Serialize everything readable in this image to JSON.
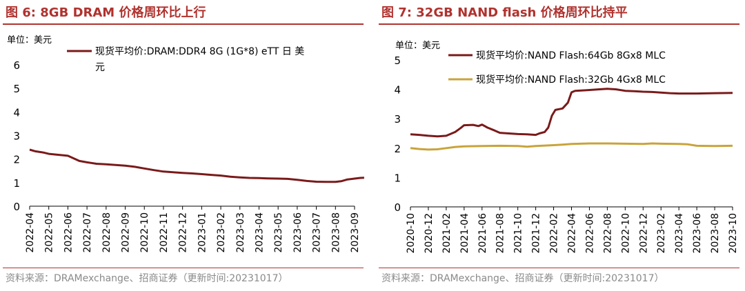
{
  "chart_data": [
    {
      "type": "line",
      "figure_label": "图 6:",
      "title": "8GB DRAM 价格周环比上行",
      "unit": "单位：美元",
      "legend": [
        "现货平均价:DRAM:DDR4 8G (1G*8) eTT 日 美",
        "元"
      ],
      "source": "资料来源：DRAMexchange、招商证券（更新时间:20231017）",
      "ylim": [
        0,
        6
      ],
      "yticks": [
        0,
        1,
        2,
        3,
        4,
        5,
        6
      ],
      "x_labels": [
        "2022-04",
        "2022-05",
        "2022-06",
        "2022-07",
        "2022-08",
        "2022-09",
        "2022-10",
        "2022-11",
        "2022-12",
        "2023-01",
        "2023-02",
        "2023-03",
        "2023-04",
        "2023-05",
        "2023-06",
        "2023-07",
        "2023-08",
        "2023-09"
      ],
      "color": "#7a1a1a",
      "series": [
        {
          "name": "现货平均价:DRAM:DDR4 8G (1G*8) eTT 日 美元",
          "values": [
            [
              0,
              2.4
            ],
            [
              0.3,
              2.33
            ],
            [
              0.7,
              2.28
            ],
            [
              1,
              2.22
            ],
            [
              1.5,
              2.18
            ],
            [
              2,
              2.14
            ],
            [
              2.3,
              2.03
            ],
            [
              2.6,
              1.92
            ],
            [
              3,
              1.86
            ],
            [
              3.5,
              1.8
            ],
            [
              4,
              1.78
            ],
            [
              4.5,
              1.75
            ],
            [
              5,
              1.72
            ],
            [
              5.5,
              1.67
            ],
            [
              6,
              1.6
            ],
            [
              6.5,
              1.53
            ],
            [
              7,
              1.47
            ],
            [
              7.5,
              1.44
            ],
            [
              8,
              1.41
            ],
            [
              8.5,
              1.39
            ],
            [
              9,
              1.36
            ],
            [
              9.5,
              1.33
            ],
            [
              10,
              1.3
            ],
            [
              10.5,
              1.25
            ],
            [
              11,
              1.22
            ],
            [
              11.5,
              1.2
            ],
            [
              12,
              1.19
            ],
            [
              12.5,
              1.18
            ],
            [
              13,
              1.17
            ],
            [
              13.5,
              1.16
            ],
            [
              14,
              1.12
            ],
            [
              14.5,
              1.07
            ],
            [
              15,
              1.04
            ],
            [
              15.5,
              1.03
            ],
            [
              16,
              1.03
            ],
            [
              16.3,
              1.06
            ],
            [
              16.6,
              1.13
            ],
            [
              17,
              1.17
            ],
            [
              17.3,
              1.2
            ],
            [
              17.5,
              1.21
            ]
          ]
        }
      ]
    },
    {
      "type": "line",
      "figure_label": "图 7:",
      "title": "32GB NAND flash 价格周环比持平",
      "unit": "单位：美元",
      "source": "资料来源：DRAMexchange、招商证券（更新时间:20231017）",
      "ylim": [
        0,
        5
      ],
      "yticks": [
        0,
        1,
        2,
        3,
        4,
        5
      ],
      "x_labels": [
        "2020-10",
        "2020-12",
        "2021-02",
        "2021-04",
        "2021-06",
        "2021-08",
        "2021-10",
        "2021-12",
        "2022-02",
        "2022-04",
        "2022-06",
        "2022-08",
        "2022-10",
        "2022-12",
        "2023-02",
        "2023-04",
        "2023-06",
        "2023-08",
        "2023-10"
      ],
      "series": [
        {
          "name": "现货平均价:NAND Flash:64Gb 8Gx8 MLC",
          "color": "#7a1a1a",
          "values": [
            [
              0,
              2.47
            ],
            [
              0.5,
              2.45
            ],
            [
              1,
              2.42
            ],
            [
              1.5,
              2.4
            ],
            [
              2,
              2.42
            ],
            [
              2.5,
              2.55
            ],
            [
              2.8,
              2.68
            ],
            [
              3,
              2.78
            ],
            [
              3.5,
              2.79
            ],
            [
              3.8,
              2.75
            ],
            [
              4,
              2.8
            ],
            [
              4.3,
              2.7
            ],
            [
              4.7,
              2.6
            ],
            [
              5,
              2.52
            ],
            [
              5.5,
              2.5
            ],
            [
              6,
              2.48
            ],
            [
              6.5,
              2.47
            ],
            [
              7,
              2.45
            ],
            [
              7.2,
              2.5
            ],
            [
              7.5,
              2.55
            ],
            [
              7.7,
              2.7
            ],
            [
              7.9,
              3.1
            ],
            [
              8.1,
              3.3
            ],
            [
              8.5,
              3.35
            ],
            [
              8.8,
              3.55
            ],
            [
              9,
              3.9
            ],
            [
              9.2,
              3.95
            ],
            [
              9.8,
              3.97
            ],
            [
              10.5,
              4.0
            ],
            [
              11,
              4.02
            ],
            [
              11.5,
              4.0
            ],
            [
              12,
              3.95
            ],
            [
              12.5,
              3.94
            ],
            [
              13,
              3.92
            ],
            [
              13.5,
              3.91
            ],
            [
              14,
              3.89
            ],
            [
              14.5,
              3.87
            ],
            [
              15,
              3.86
            ],
            [
              16,
              3.86
            ],
            [
              17,
              3.87
            ],
            [
              18,
              3.88
            ]
          ]
        },
        {
          "name": "现货平均价:NAND Flash:32Gb 4Gx8 MLC",
          "color": "#c9a33b",
          "values": [
            [
              0,
              2.0
            ],
            [
              0.5,
              1.97
            ],
            [
              1,
              1.95
            ],
            [
              1.5,
              1.96
            ],
            [
              2,
              2.0
            ],
            [
              2.5,
              2.04
            ],
            [
              3,
              2.06
            ],
            [
              4,
              2.07
            ],
            [
              5,
              2.08
            ],
            [
              6,
              2.07
            ],
            [
              6.5,
              2.05
            ],
            [
              7,
              2.07
            ],
            [
              8,
              2.1
            ],
            [
              8.5,
              2.12
            ],
            [
              9,
              2.14
            ],
            [
              10,
              2.16
            ],
            [
              11,
              2.16
            ],
            [
              12,
              2.15
            ],
            [
              13,
              2.14
            ],
            [
              13.5,
              2.16
            ],
            [
              14,
              2.15
            ],
            [
              15,
              2.14
            ],
            [
              15.5,
              2.13
            ],
            [
              16,
              2.08
            ],
            [
              17,
              2.07
            ],
            [
              18,
              2.08
            ]
          ]
        }
      ]
    }
  ]
}
